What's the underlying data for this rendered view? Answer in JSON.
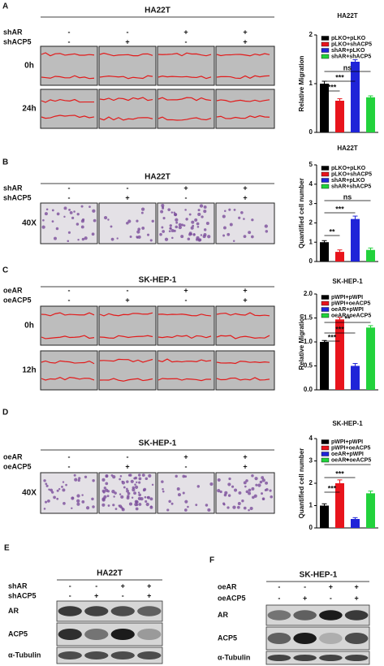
{
  "panels": {
    "A": {
      "letter": "A",
      "title": "HA22T",
      "row_labels": [
        "shAR",
        "shACP5"
      ],
      "signs": [
        [
          "-",
          "-",
          "+",
          "+"
        ],
        [
          "-",
          "+",
          "-",
          "+"
        ]
      ],
      "time_labels": [
        "0h",
        "24h"
      ]
    },
    "B": {
      "letter": "B",
      "title": "HA22T",
      "row_labels": [
        "shAR",
        "shACP5"
      ],
      "signs": [
        [
          "-",
          "-",
          "+",
          "+"
        ],
        [
          "-",
          "+",
          "-",
          "+"
        ]
      ],
      "magnification": "40X"
    },
    "C": {
      "letter": "C",
      "title": "SK-HEP-1",
      "row_labels": [
        "oeAR",
        "oeACP5"
      ],
      "signs": [
        [
          "-",
          "-",
          "+",
          "+"
        ],
        [
          "-",
          "+",
          "-",
          "+"
        ]
      ],
      "time_labels": [
        "0h",
        "12h"
      ]
    },
    "D": {
      "letter": "D",
      "title": "SK-HEP-1",
      "row_labels": [
        "oeAR",
        "oeACP5"
      ],
      "signs": [
        [
          "-",
          "-",
          "+",
          "+"
        ],
        [
          "-",
          "+",
          "-",
          "+"
        ]
      ],
      "magnification": "40X"
    },
    "E": {
      "letter": "E",
      "title": "HA22T",
      "row_labels": [
        "shAR",
        "shACP5"
      ],
      "signs": [
        [
          "-",
          "-",
          "+",
          "+"
        ],
        [
          "-",
          "+",
          "-",
          "+"
        ]
      ],
      "blots": [
        "AR",
        "ACP5",
        "α-Tubulin"
      ]
    },
    "F": {
      "letter": "F",
      "title": "SK-HEP-1",
      "row_labels": [
        "oeAR",
        "oeACP5"
      ],
      "signs": [
        [
          "-",
          "-",
          "+",
          "+"
        ],
        [
          "-",
          "+",
          "-",
          "+"
        ]
      ],
      "blots": [
        "AR",
        "ACP5",
        "α-Tubulin"
      ]
    }
  },
  "chart_data": [
    {
      "type": "bar",
      "title": "HA22T",
      "y_label": "Relative Migration",
      "categories": [
        "pLKO+pLKO",
        "pLKO+shACP5",
        "shAR+pLKO",
        "shAR+shACP5"
      ],
      "colors": [
        "#000000",
        "#e8141c",
        "#1f24d8",
        "#22d23c"
      ],
      "values": [
        1.0,
        0.65,
        1.45,
        0.72
      ],
      "errors": [
        0.05,
        0.04,
        0.04,
        0.03
      ],
      "ylim": [
        0,
        2
      ],
      "yticks": [
        0,
        1,
        2
      ],
      "annotations": [
        "***",
        "***",
        "ns"
      ]
    },
    {
      "type": "bar",
      "title": "HA22T",
      "y_label": "Quantified cell number",
      "categories": [
        "pLKO+pLKO",
        "pLKO+shACP5",
        "shAR+pLKO",
        "shAR+shACP5"
      ],
      "colors": [
        "#000000",
        "#e8141c",
        "#1f24d8",
        "#22d23c"
      ],
      "values": [
        1.0,
        0.5,
        2.2,
        0.6
      ],
      "errors": [
        0.08,
        0.1,
        0.15,
        0.1
      ],
      "ylim": [
        0,
        5
      ],
      "yticks": [
        0,
        1,
        2,
        3,
        4,
        5
      ],
      "annotations": [
        "**",
        "***",
        "ns"
      ]
    },
    {
      "type": "bar",
      "title": "SK-HEP-1",
      "y_label": "Relative Migration",
      "categories": [
        "pWPI+pWPI",
        "pWPI+oeACP5",
        "oeAR+pWPI",
        "oeAR+oeACP5"
      ],
      "colors": [
        "#000000",
        "#e8141c",
        "#1f24d8",
        "#22d23c"
      ],
      "values": [
        1.0,
        1.47,
        0.5,
        1.3
      ],
      "errors": [
        0.03,
        0.04,
        0.05,
        0.04
      ],
      "ylim": [
        0,
        2
      ],
      "yticks": [
        {
          "value": 0,
          "label": "0.0"
        },
        {
          "value": 0.5,
          "label": "0.5"
        },
        {
          "value": 1,
          "label": "1.0"
        },
        {
          "value": 1.5,
          "label": "1.5"
        },
        {
          "value": 2,
          "label": "2.0"
        }
      ],
      "annotations": [
        "***",
        "***",
        "**"
      ]
    },
    {
      "type": "bar",
      "title": "SK-HEP-1",
      "y_label": "Quantified cell number",
      "categories": [
        "pWPI+pWPI",
        "pWPI+oeACP5",
        "oeAR+pWPI",
        "oeAR+oeACP5"
      ],
      "colors": [
        "#000000",
        "#e8141c",
        "#1f24d8",
        "#22d23c"
      ],
      "values": [
        1.0,
        2.0,
        0.4,
        1.55
      ],
      "errors": [
        0.08,
        0.15,
        0.06,
        0.1
      ],
      "ylim": [
        0,
        4
      ],
      "yticks": [
        0,
        1,
        2,
        3,
        4
      ],
      "annotations": [
        "***",
        "***",
        "*"
      ]
    }
  ]
}
